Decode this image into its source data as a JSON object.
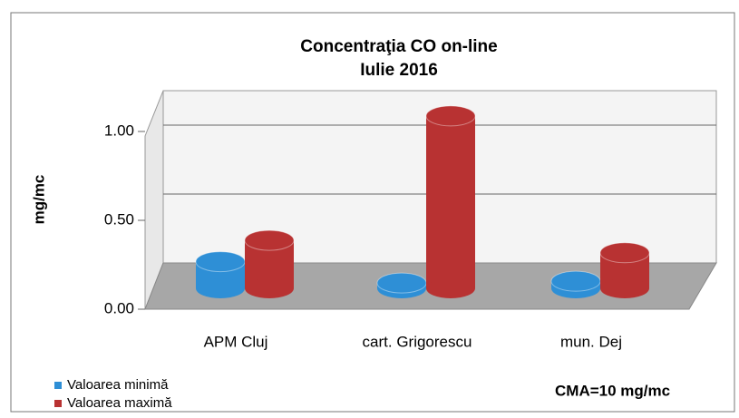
{
  "chart_data": {
    "type": "bar3d",
    "title": [
      "Concentraţia CO on-line",
      "Iulie 2016"
    ],
    "y_label": "mg/mc",
    "categories": [
      "APM Cluj",
      "cart. Grigorescu",
      "mun. Dej"
    ],
    "series": [
      {
        "name": "Valoarea minimă",
        "color": "#2e8fd6",
        "values": [
          0.15,
          0.03,
          0.04
        ]
      },
      {
        "name": "Valoarea maximă",
        "color": "#b83232",
        "values": [
          0.27,
          0.97,
          0.2
        ]
      }
    ],
    "ylim": [
      0,
      1.25
    ],
    "yticks": [
      {
        "value": 0,
        "label": "0.00"
      },
      {
        "value": 0.5,
        "label": "0.50"
      },
      {
        "value": 1,
        "label": "1.00"
      }
    ],
    "grid": true,
    "legend": "bottom-left",
    "annotation": "CMA=10 mg/mc"
  }
}
